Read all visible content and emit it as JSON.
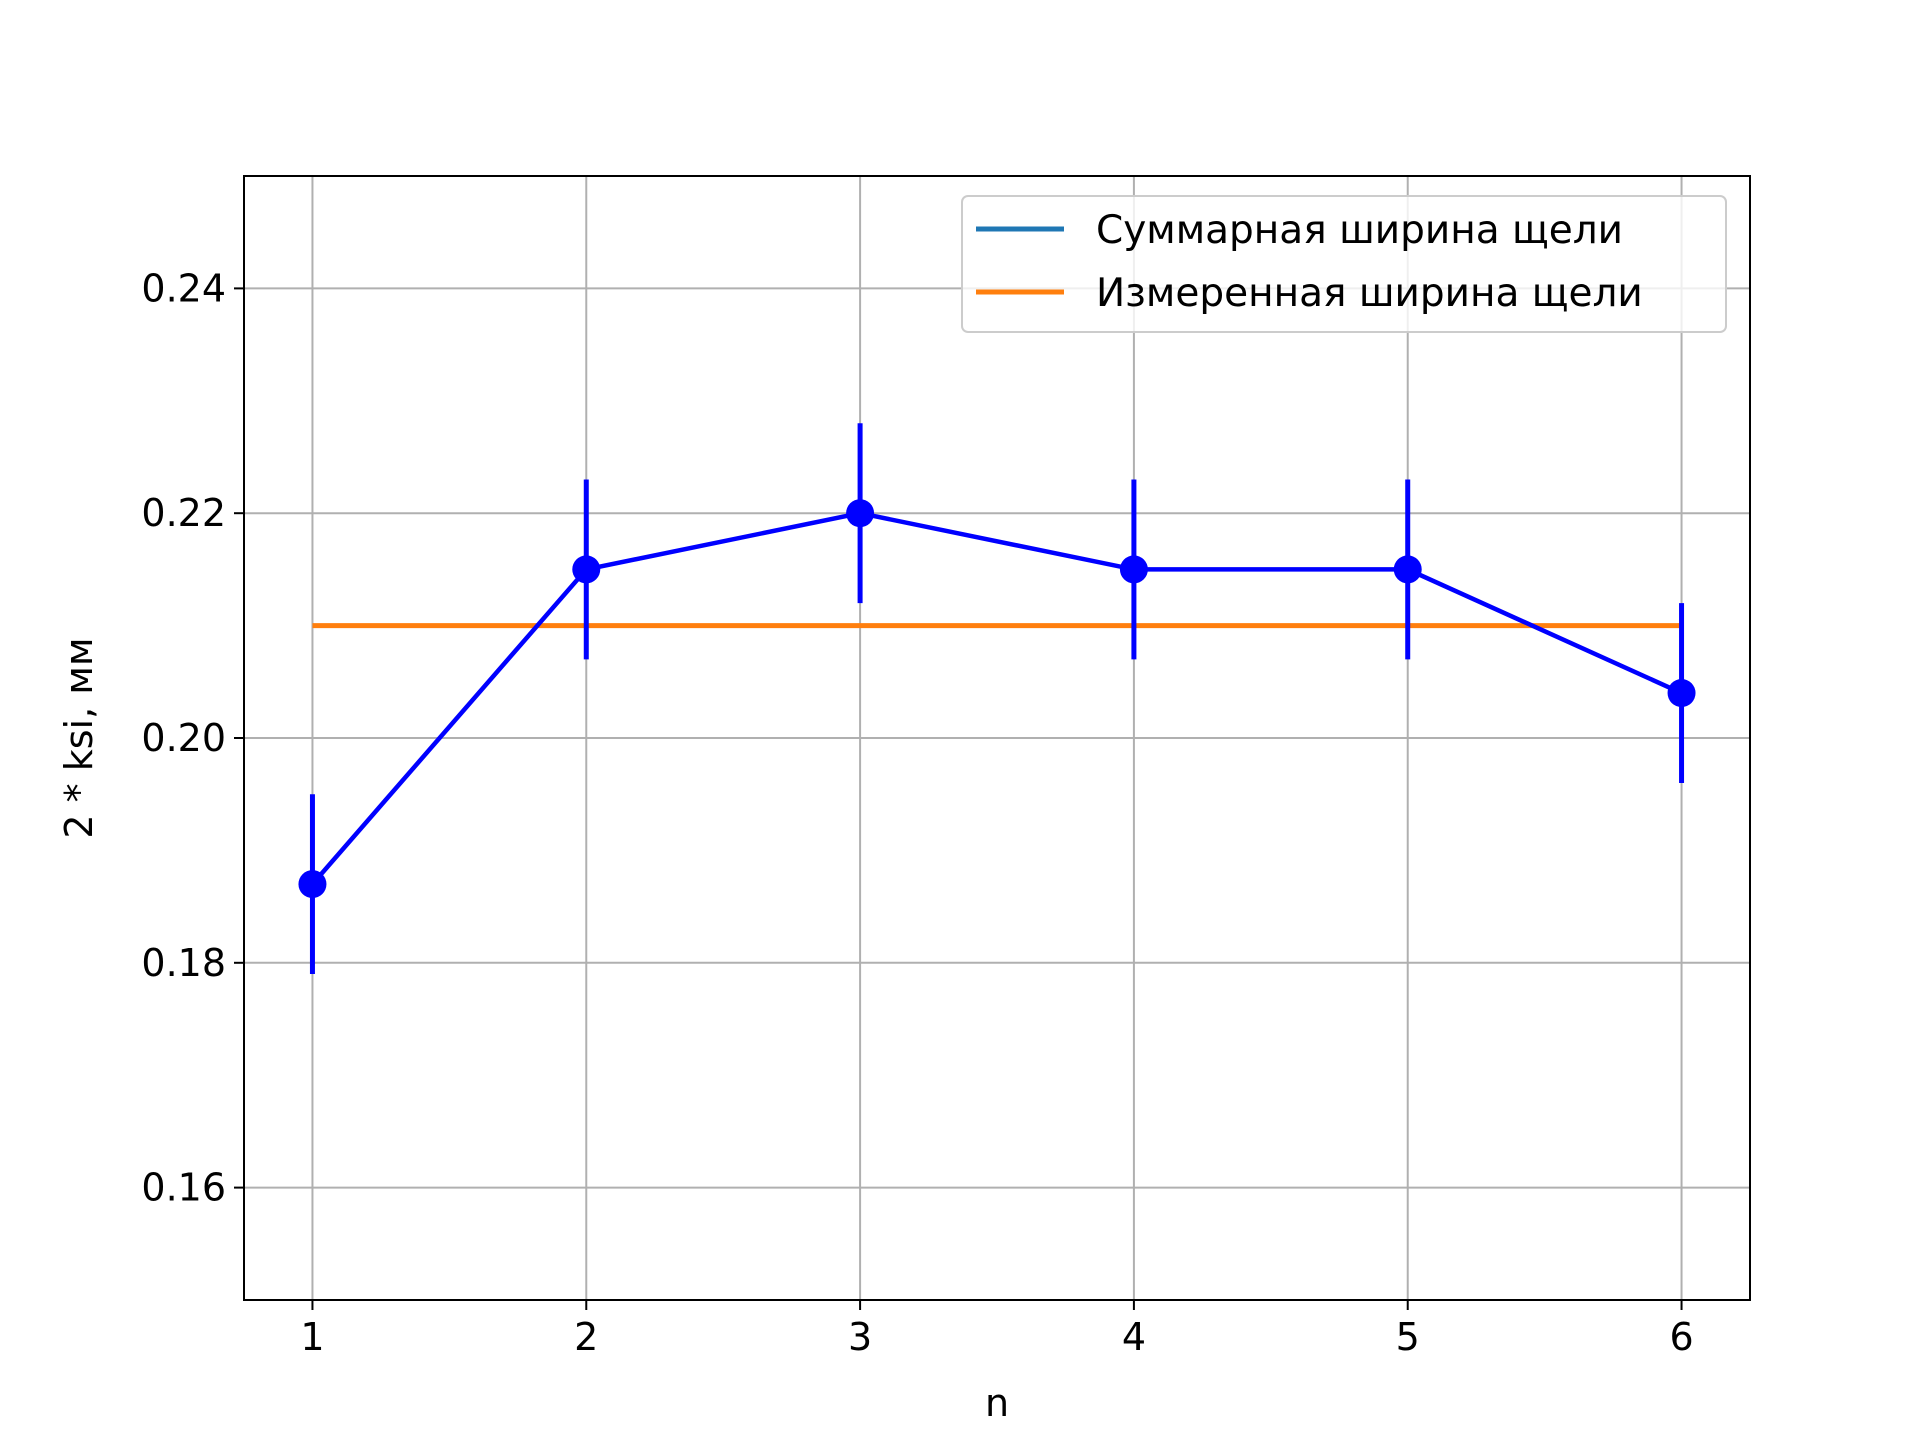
{
  "chart_data": {
    "type": "line",
    "title": "",
    "xlabel": "n",
    "ylabel": "2 * ksi, мм",
    "xlim": [
      0.75,
      6.25
    ],
    "ylim": [
      0.15,
      0.25
    ],
    "xticks": [
      1,
      2,
      3,
      4,
      5,
      6
    ],
    "xtick_labels": [
      "1",
      "2",
      "3",
      "4",
      "5",
      "6"
    ],
    "yticks": [
      0.16,
      0.18,
      0.2,
      0.22,
      0.24
    ],
    "ytick_labels": [
      "0.16",
      "0.18",
      "0.20",
      "0.22",
      "0.24"
    ],
    "grid": true,
    "legend_position": "top-right",
    "legend": [
      {
        "label": "Суммарная ширина щели",
        "color": "#1f77b4"
      },
      {
        "label": "Измеренная ширина щели",
        "color": "#ff7f0e"
      }
    ],
    "series": [
      {
        "name": "Суммарная ширина щели",
        "color": "#0000ff",
        "marker": "circle",
        "x": [
          1,
          2,
          3,
          4,
          5,
          6
        ],
        "y": [
          0.187,
          0.215,
          0.22,
          0.215,
          0.215,
          0.204
        ],
        "yerr": [
          0.008,
          0.008,
          0.008,
          0.008,
          0.008,
          0.008
        ]
      },
      {
        "name": "Измеренная ширина щели",
        "color": "#ff7f0e",
        "x": [
          1,
          6
        ],
        "y": [
          0.21,
          0.21
        ]
      }
    ]
  }
}
